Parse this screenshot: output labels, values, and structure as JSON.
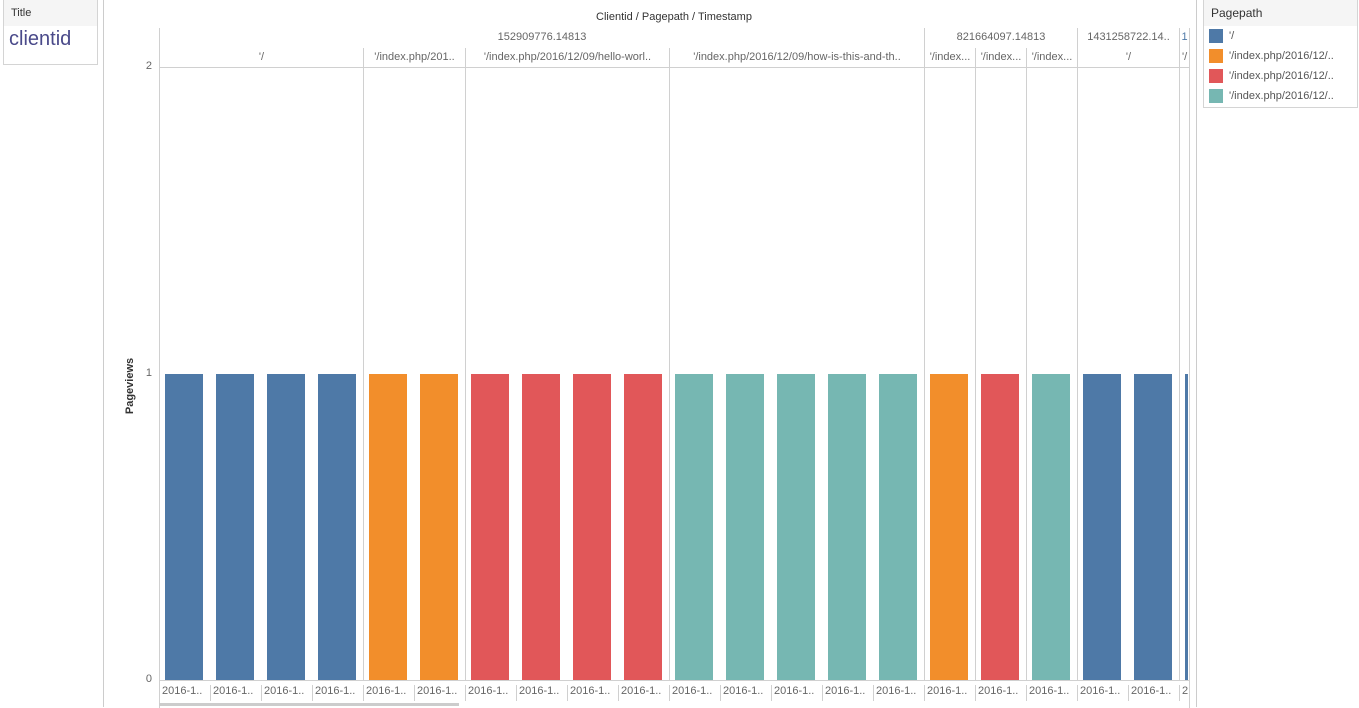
{
  "title_card": {
    "header": "Title",
    "value": "clientid"
  },
  "legend": {
    "title": "Pagepath",
    "items": [
      {
        "label": "'/",
        "color": "#4e79a7"
      },
      {
        "label": "'/index.php/2016/12/..",
        "color": "#f28e2b"
      },
      {
        "label": "'/index.php/2016/12/..",
        "color": "#e15759"
      },
      {
        "label": "'/index.php/2016/12/..",
        "color": "#76b7b2"
      }
    ]
  },
  "chart_data": {
    "type": "bar",
    "title": "Clientid / Pagepath / Timestamp",
    "ylabel": "Pageviews",
    "ylim": [
      0,
      2
    ],
    "yticks": [
      "0",
      "1",
      "2"
    ],
    "grid": true,
    "legend_placement": "right",
    "clientid_headers": [
      {
        "label": "152909776.14813",
        "span": 15
      },
      {
        "label": "821664097.14813",
        "span": 3
      },
      {
        "label": "1431258722.14..",
        "span": 2
      },
      {
        "label": "1",
        "span": 0.2
      }
    ],
    "pagepath_headers": [
      {
        "label": "'/",
        "span": 4
      },
      {
        "label": "'/index.php/201..",
        "span": 2
      },
      {
        "label": "'/index.php/2016/12/09/hello-worl..",
        "span": 4
      },
      {
        "label": "'/index.php/2016/12/09/how-is-this-and-th..",
        "span": 5
      },
      {
        "label": "'/index...",
        "span": 1
      },
      {
        "label": "'/index...",
        "span": 1
      },
      {
        "label": "'/index...",
        "span": 1
      },
      {
        "label": "'/",
        "span": 2
      },
      {
        "label": "'/",
        "span": 0.2
      }
    ],
    "categories": [
      "2016-1..",
      "2016-1..",
      "2016-1..",
      "2016-1..",
      "2016-1..",
      "2016-1..",
      "2016-1..",
      "2016-1..",
      "2016-1..",
      "2016-1..",
      "2016-1..",
      "2016-1..",
      "2016-1..",
      "2016-1..",
      "2016-1..",
      "2016-1..",
      "2016-1..",
      "2016-1..",
      "2016-1..",
      "2016-1..",
      "2"
    ],
    "values": [
      1,
      1,
      1,
      1,
      1,
      1,
      1,
      1,
      1,
      1,
      1,
      1,
      1,
      1,
      1,
      1,
      1,
      1,
      1,
      1,
      1
    ],
    "color_index": [
      0,
      0,
      0,
      0,
      1,
      1,
      2,
      2,
      2,
      2,
      3,
      3,
      3,
      3,
      3,
      1,
      2,
      3,
      0,
      0,
      0
    ]
  }
}
